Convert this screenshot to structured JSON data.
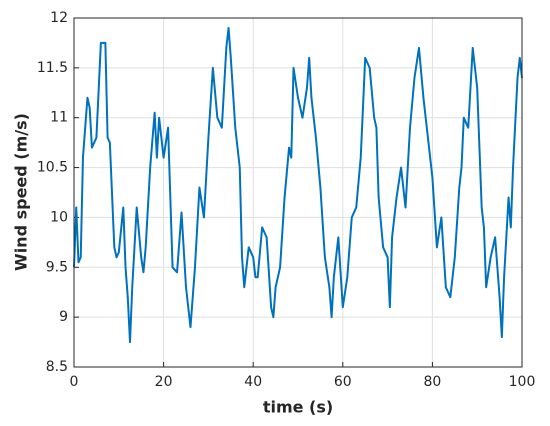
{
  "chart_data": {
    "type": "line",
    "xlabel": "time (s)",
    "ylabel": "Wind speed (m/s)",
    "x": [
      0,
      0.5,
      1,
      1.5,
      2,
      3,
      3.5,
      4,
      5,
      6,
      7,
      7.5,
      8,
      9,
      9.5,
      10,
      11,
      11.5,
      12,
      12.5,
      13,
      14,
      15,
      15.5,
      16,
      17,
      18,
      18.5,
      19,
      20,
      21,
      21.5,
      22,
      23,
      24,
      25,
      26,
      27,
      28,
      29,
      30,
      31,
      31.5,
      32,
      33,
      34,
      34.5,
      35,
      36,
      37,
      37.5,
      38,
      38.5,
      39,
      40,
      40.5,
      41,
      42,
      43,
      44,
      44.5,
      45,
      46,
      47,
      48,
      48.5,
      49,
      50,
      51,
      52,
      52.5,
      53,
      54,
      55,
      56,
      57,
      57.5,
      58,
      59,
      60,
      61,
      62,
      63,
      64,
      65,
      66,
      67,
      67.5,
      68,
      69,
      70,
      70.5,
      71,
      72,
      73,
      74,
      75,
      76,
      77,
      78,
      79,
      80,
      81,
      82,
      83,
      84,
      85,
      86,
      86.5,
      87,
      88,
      89,
      90,
      91,
      91.5,
      92,
      93,
      94,
      95,
      95.5,
      96,
      97,
      97.5,
      98,
      99,
      99.5,
      100
    ],
    "values": [
      9.5,
      10.1,
      9.55,
      9.6,
      10.6,
      11.2,
      11.1,
      10.7,
      10.8,
      11.75,
      11.75,
      10.8,
      10.75,
      9.7,
      9.6,
      9.65,
      10.1,
      9.5,
      9.2,
      8.75,
      9.3,
      10.1,
      9.6,
      9.45,
      9.7,
      10.5,
      11.05,
      10.6,
      11.0,
      10.6,
      10.9,
      10.2,
      9.5,
      9.45,
      10.05,
      9.3,
      8.9,
      9.5,
      10.3,
      10.0,
      10.8,
      11.5,
      11.25,
      11.0,
      10.9,
      11.7,
      11.9,
      11.6,
      10.9,
      10.5,
      9.6,
      9.3,
      9.5,
      9.7,
      9.6,
      9.4,
      9.4,
      9.9,
      9.8,
      9.1,
      9.0,
      9.3,
      9.5,
      10.2,
      10.7,
      10.6,
      11.5,
      11.2,
      11.0,
      11.3,
      11.6,
      11.2,
      10.8,
      10.3,
      9.6,
      9.3,
      9.0,
      9.4,
      9.8,
      9.1,
      9.4,
      10.0,
      10.1,
      10.6,
      11.6,
      11.5,
      11.0,
      10.9,
      10.2,
      9.7,
      9.6,
      9.1,
      9.8,
      10.2,
      10.5,
      10.1,
      10.9,
      11.4,
      11.7,
      11.2,
      10.8,
      10.4,
      9.7,
      10.0,
      9.3,
      9.2,
      9.6,
      10.3,
      10.5,
      11.0,
      10.9,
      11.7,
      11.3,
      10.1,
      9.9,
      9.3,
      9.6,
      9.8,
      9.2,
      8.8,
      9.4,
      10.2,
      9.9,
      10.5,
      11.4,
      11.6,
      11.4
    ],
    "color": "#0072bd",
    "xlim": [
      0,
      100
    ],
    "xticks": [
      0,
      20,
      40,
      60,
      80,
      100
    ],
    "ylim": [
      8.5,
      12
    ],
    "yticks": [
      8.5,
      9,
      9.5,
      10,
      10.5,
      11,
      11.5,
      12
    ],
    "grid": true
  }
}
